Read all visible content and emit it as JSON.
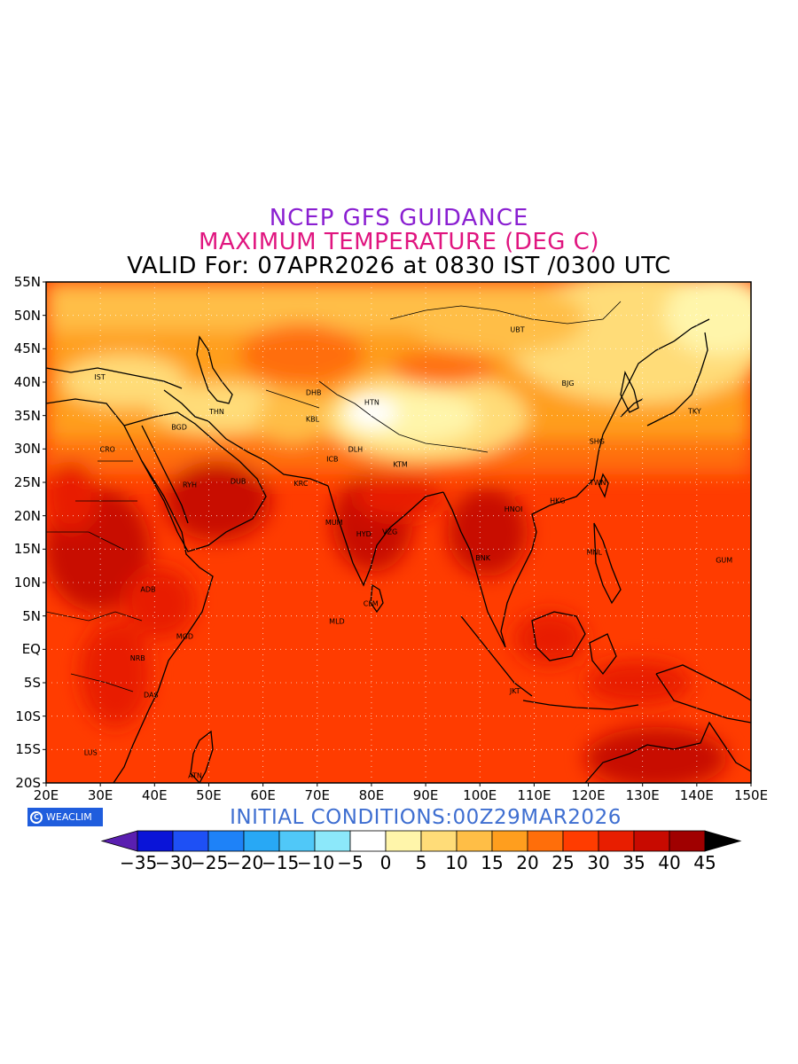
{
  "title": {
    "line1": "NCEP GFS GUIDANCE",
    "line2": "MAXIMUM TEMPERATURE (DEG C)",
    "line3": "VALID For: 07APR2026 at 0830 IST /0300 UTC"
  },
  "map": {
    "lat_labels": [
      "55N",
      "50N",
      "45N",
      "40N",
      "35N",
      "30N",
      "25N",
      "20N",
      "15N",
      "10N",
      "5N",
      "EQ",
      "5S",
      "10S",
      "15S",
      "20S"
    ],
    "lon_labels": [
      "20E",
      "30E",
      "40E",
      "50E",
      "60E",
      "70E",
      "80E",
      "90E",
      "100E",
      "110E",
      "120E",
      "130E",
      "140E",
      "150E"
    ],
    "lat_range": [
      -20,
      55
    ],
    "lon_range": [
      20,
      150
    ],
    "gridlines": "dotted",
    "stations": [
      {
        "code": "IST",
        "lon": 30.2,
        "lat": 40.8
      },
      {
        "code": "THN",
        "lon": 51.4,
        "lat": 35.6
      },
      {
        "code": "BGD",
        "lon": 44.4,
        "lat": 33.3
      },
      {
        "code": "CRO",
        "lon": 31.2,
        "lat": 30.0
      },
      {
        "code": "RYH",
        "lon": 46.5,
        "lat": 24.7
      },
      {
        "code": "DUB",
        "lon": 55.3,
        "lat": 25.2
      },
      {
        "code": "DHB",
        "lon": 69.2,
        "lat": 38.5
      },
      {
        "code": "KBL",
        "lon": 69.2,
        "lat": 34.5
      },
      {
        "code": "HTN",
        "lon": 80.0,
        "lat": 37.0
      },
      {
        "code": "ICB",
        "lon": 73.0,
        "lat": 28.5
      },
      {
        "code": "KRC",
        "lon": 67.0,
        "lat": 24.9
      },
      {
        "code": "DLH",
        "lon": 77.0,
        "lat": 30.0
      },
      {
        "code": "KTM",
        "lon": 85.3,
        "lat": 27.7
      },
      {
        "code": "MUM",
        "lon": 72.8,
        "lat": 19.0
      },
      {
        "code": "HYD",
        "lon": 78.5,
        "lat": 17.3
      },
      {
        "code": "VZG",
        "lon": 83.3,
        "lat": 17.6
      },
      {
        "code": "CLM",
        "lon": 79.8,
        "lat": 6.9
      },
      {
        "code": "MLD",
        "lon": 73.5,
        "lat": 4.2
      },
      {
        "code": "BNK",
        "lon": 100.5,
        "lat": 13.7
      },
      {
        "code": "HNOI",
        "lon": 105.8,
        "lat": 21.0
      },
      {
        "code": "HKG",
        "lon": 114.2,
        "lat": 22.3
      },
      {
        "code": "TWN",
        "lon": 121.5,
        "lat": 25.0
      },
      {
        "code": "SHG",
        "lon": 121.5,
        "lat": 31.2
      },
      {
        "code": "BJG",
        "lon": 116.4,
        "lat": 39.9
      },
      {
        "code": "UBT",
        "lon": 106.9,
        "lat": 47.9
      },
      {
        "code": "TKY",
        "lon": 139.7,
        "lat": 35.7
      },
      {
        "code": "MNL",
        "lon": 121.0,
        "lat": 14.6
      },
      {
        "code": "GUM",
        "lon": 144.8,
        "lat": 13.4
      },
      {
        "code": "JKT",
        "lon": 106.8,
        "lat": -6.2
      },
      {
        "code": "ADB",
        "lon": 38.7,
        "lat": 9.0
      },
      {
        "code": "MGD",
        "lon": 45.3,
        "lat": 2.0
      },
      {
        "code": "NRB",
        "lon": 36.8,
        "lat": -1.3
      },
      {
        "code": "DAS",
        "lon": 39.3,
        "lat": -6.8
      },
      {
        "code": "LUS",
        "lon": 28.3,
        "lat": -15.4
      },
      {
        "code": "ATN",
        "lon": 47.5,
        "lat": -18.9
      }
    ]
  },
  "logo": {
    "text": "WEACLIM",
    "icon": "copyright-circle-icon"
  },
  "initial_conditions": "INITIAL CONDITIONS:00Z29MAR2026",
  "colorbar": {
    "labels": [
      "-35",
      "-30",
      "-25",
      "-20",
      "-15",
      "-10",
      "-5",
      "0",
      "5",
      "10",
      "15",
      "20",
      "25",
      "30",
      "35",
      "40",
      "45"
    ],
    "colors": [
      "#5a1fb0",
      "#0a14d8",
      "#1e50f5",
      "#1e82f8",
      "#28a8f5",
      "#50c8f8",
      "#8ce8fa",
      "#ffffff",
      "#fff5aa",
      "#ffdc78",
      "#ffbe46",
      "#ff9e1e",
      "#ff6e0a",
      "#ff3c00",
      "#e81e00",
      "#c80a00",
      "#a00000",
      "#000000"
    ]
  }
}
